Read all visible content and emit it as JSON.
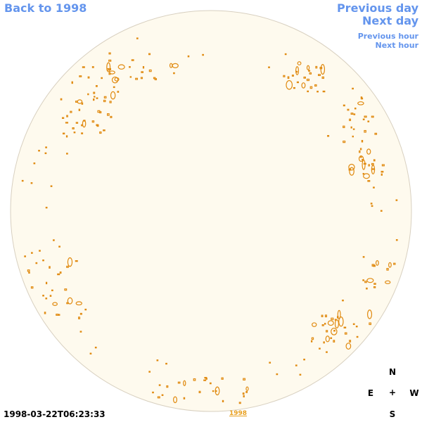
{
  "nav": {
    "back": "Back to 1998",
    "previous_day": "Previous day",
    "next_day": "Next day",
    "previous_hour": "Previous hour",
    "next_hour": "Next hour"
  },
  "timestamp": "1998-03-22T06:23:33",
  "year_link": "1998",
  "compass": {
    "north": "N",
    "east": "E",
    "center": "+",
    "west": "W",
    "south": "S"
  },
  "colors": {
    "link": "#6495ed",
    "disk_fill": "#fefaee",
    "disk_border": "#d8d0c0",
    "contour": "#e08a10"
  }
}
